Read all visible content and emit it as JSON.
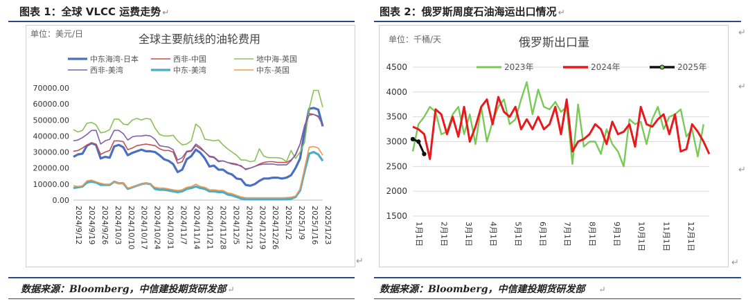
{
  "figures": [
    {
      "title": "图表 1：全球 VLCC 运费走势",
      "source": "数据来源：Bloomberg，中信建投期货研发部"
    },
    {
      "title": "图表 2：俄罗斯周度石油海运出口情况",
      "source": "数据来源：Bloomberg，中信建投期货研发部"
    }
  ],
  "chart_data": [
    {
      "type": "line",
      "title": "全球主要航线的油轮费用",
      "unit_label": "单位：美元/日",
      "ylim": [
        0,
        70000
      ],
      "yticks": [
        "0.00",
        "10000.00",
        "20000.00",
        "30000.00",
        "40000.00",
        "50000.00",
        "60000.00",
        "70000.00"
      ],
      "x_ticks": [
        "2024/9/12",
        "2024/9/19",
        "2024/9/26",
        "2024/10/3",
        "2024/10/10",
        "2024/10/17",
        "2024/10/24",
        "2024/10/31",
        "2024/11/7",
        "2024/11/14",
        "2024/11/21",
        "2024/11/28",
        "2024/12/5",
        "2024/12/12",
        "2024/12/19",
        "2024/12/26",
        "2025/1/2",
        "2025/1/9",
        "2025/1/16",
        "2025/1/23"
      ],
      "legend_position": "top",
      "grid": true,
      "series": [
        {
          "name": "中东海湾-日本",
          "color": "#4a6fc1",
          "width": 3.2,
          "values": [
            27000,
            28500,
            29000,
            34000,
            35500,
            34500,
            26000,
            27000,
            26500,
            33500,
            34500,
            33000,
            28000,
            29500,
            30500,
            31500,
            30500,
            30500,
            30000,
            28000,
            25500,
            24500,
            22500,
            17500,
            19000,
            25500,
            27500,
            31500,
            29500,
            26000,
            21000,
            21500,
            19000,
            19000,
            17000,
            16000,
            13500,
            13000,
            9500,
            9000,
            10000,
            12000,
            13500,
            13500,
            14000,
            14000,
            13500,
            14000,
            15500,
            20000,
            26000,
            43000,
            57000,
            57500,
            56500,
            46000
          ]
        },
        {
          "name": "西非-中国",
          "color": "#c0504d",
          "width": 1.6,
          "values": [
            30500,
            31000,
            32500,
            34500,
            35500,
            35000,
            28500,
            30000,
            31000,
            37000,
            37000,
            36500,
            31500,
            32500,
            34000,
            34500,
            35000,
            34500,
            34000,
            32000,
            31000,
            31000,
            30000,
            23000,
            24000,
            30000,
            30500,
            34000,
            32000,
            30000,
            27000,
            26500,
            24000,
            24500,
            23500,
            23000,
            22500,
            21000,
            19500,
            20000,
            21000,
            22500,
            23500,
            24000,
            24000,
            23500,
            23500,
            23500,
            25000,
            28000,
            35000,
            46500,
            54000,
            53500,
            52000,
            47000
          ]
        },
        {
          "name": "地中海-英国",
          "color": "#8ac058",
          "width": 1.6,
          "values": [
            44000,
            42500,
            43500,
            48000,
            48500,
            47000,
            42000,
            42500,
            44000,
            50500,
            50500,
            47500,
            47000,
            50000,
            51000,
            50000,
            51000,
            50500,
            45000,
            41000,
            40000,
            40000,
            40500,
            37000,
            34500,
            35000,
            37000,
            47500,
            45000,
            38000,
            37500,
            37000,
            37500,
            34500,
            32000,
            30000,
            28000,
            25000,
            25000,
            24000,
            24500,
            32000,
            27500,
            26500,
            26500,
            26500,
            26000,
            24000,
            31000,
            26000,
            30000,
            36000,
            57000,
            68500,
            68500,
            58000
          ]
        },
        {
          "name": "西非-美湾",
          "color": "#7f5fa8",
          "width": 1.6,
          "values": [
            37000,
            37500,
            39000,
            41000,
            43500,
            43500,
            35000,
            37000,
            38000,
            43500,
            43500,
            41500,
            37500,
            39500,
            40000,
            40000,
            40500,
            40000,
            38000,
            34000,
            33500,
            33000,
            31500,
            25000,
            26500,
            30500,
            31000,
            35000,
            33000,
            30000,
            27500,
            27000,
            24500,
            24500,
            23500,
            22500,
            22000,
            21500,
            19000,
            20000,
            21000,
            22000,
            22500,
            22500,
            22500,
            22000,
            22000,
            22000,
            24500,
            28500,
            35000,
            46500,
            53000,
            53500,
            52500,
            46500
          ]
        },
        {
          "name": "中东-美湾",
          "color": "#4bacc6",
          "width": 3.2,
          "values": [
            7500,
            8000,
            8500,
            11000,
            11500,
            11000,
            9500,
            9500,
            9500,
            11500,
            10500,
            10500,
            7000,
            8000,
            9000,
            10000,
            10500,
            10000,
            7000,
            6500,
            6500,
            6000,
            5500,
            5000,
            5500,
            7000,
            7500,
            8500,
            7500,
            7000,
            5500,
            5500,
            5000,
            5000,
            3500,
            3000,
            2000,
            1000,
            500,
            500,
            500,
            500,
            500,
            500,
            500,
            500,
            500,
            600,
            800,
            2000,
            6000,
            18000,
            29000,
            30000,
            28500,
            24500
          ]
        },
        {
          "name": "中东-英国",
          "color": "#f79646",
          "width": 1.6,
          "values": [
            9000,
            8500,
            9000,
            12000,
            12500,
            11500,
            10500,
            10000,
            10000,
            11500,
            10500,
            10500,
            7500,
            8000,
            9000,
            10000,
            10500,
            10000,
            8000,
            7500,
            7500,
            7000,
            6500,
            6000,
            6500,
            8000,
            8500,
            10000,
            8500,
            8000,
            6500,
            6500,
            6000,
            6000,
            4500,
            4000,
            3000,
            2000,
            1500,
            1500,
            1500,
            1500,
            1500,
            1500,
            1500,
            1500,
            1500,
            1600,
            1800,
            2500,
            7000,
            20000,
            33000,
            33500,
            32500,
            28000
          ]
        }
      ]
    },
    {
      "type": "line",
      "title": "俄罗斯出口量",
      "unit_label": "单位：千桶/天",
      "ylim": [
        1500,
        4500
      ],
      "yticks": [
        "1500",
        "2000",
        "2500",
        "3000",
        "3500",
        "4000",
        "4500"
      ],
      "x_ticks": [
        "1月1日",
        "2月1日",
        "3月1日",
        "4月1日",
        "5月1日",
        "6月1日",
        "7月1日",
        "8月1日",
        "9月1日",
        "10月1日",
        "11月1日",
        "12月1日"
      ],
      "x_range": [
        0,
        52
      ],
      "legend_position": "top",
      "grid": true,
      "series": [
        {
          "name": "2023年",
          "color": "#79c957",
          "width": 2.4,
          "x": [
            0,
            1,
            2,
            3,
            4,
            5,
            6,
            7,
            8,
            9,
            10,
            11,
            12,
            13,
            14,
            15,
            16,
            17,
            18,
            19,
            20,
            21,
            22,
            23,
            24,
            25,
            26,
            27,
            28,
            29,
            30,
            31,
            32,
            33,
            34,
            35,
            36,
            37,
            38,
            39,
            40,
            41,
            42,
            43,
            44,
            45,
            46,
            47,
            48,
            49,
            50,
            51
          ],
          "values": [
            2800,
            3350,
            3500,
            3700,
            3600,
            3150,
            3200,
            3550,
            3700,
            3150,
            3550,
            2950,
            3700,
            3000,
            3400,
            3700,
            3850,
            3350,
            3450,
            3850,
            4200,
            3550,
            4050,
            3700,
            3650,
            3800,
            3600,
            3700,
            2550,
            3750,
            2900,
            3000,
            3000,
            2750,
            3250,
            2950,
            2800,
            2500,
            3450,
            3350,
            3400,
            2950,
            3450,
            3700,
            3250,
            3500,
            3550,
            3650,
            3100,
            3250,
            2700,
            3350
          ]
        },
        {
          "name": "2024年",
          "color": "#e8191c",
          "width": 3,
          "x": [
            0,
            1,
            2,
            3,
            4,
            5,
            6,
            7,
            8,
            9,
            10,
            11,
            12,
            13,
            14,
            15,
            16,
            17,
            18,
            19,
            20,
            21,
            22,
            23,
            24,
            25,
            26,
            27,
            28,
            29,
            30,
            31,
            32,
            33,
            34,
            35,
            36,
            37,
            38,
            39,
            40,
            41,
            42,
            43,
            44,
            45,
            46,
            47,
            48,
            49,
            50,
            51,
            52
          ],
          "values": [
            3300,
            3250,
            3150,
            2650,
            3650,
            3550,
            3150,
            3500,
            3100,
            3700,
            3000,
            3300,
            3700,
            3850,
            3350,
            3900,
            3600,
            3500,
            3700,
            3250,
            3450,
            3250,
            3500,
            3250,
            3350,
            3700,
            3150,
            3850,
            2800,
            3000,
            3050,
            3150,
            3350,
            3250,
            2950,
            3400,
            3150,
            3200,
            3350,
            2900,
            3700,
            3350,
            3300,
            3450,
            3550,
            3150,
            3550,
            2800,
            2850,
            3350,
            3200,
            3000,
            2750
          ]
        },
        {
          "name": "2025年",
          "color": "#111111",
          "width": 3,
          "x": [
            0,
            1,
            2
          ],
          "values": [
            3050,
            3000,
            2750
          ]
        }
      ]
    }
  ]
}
